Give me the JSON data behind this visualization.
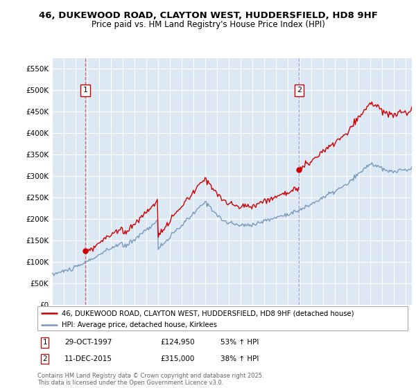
{
  "title_line1": "46, DUKEWOOD ROAD, CLAYTON WEST, HUDDERSFIELD, HD8 9HF",
  "title_line2": "Price paid vs. HM Land Registry's House Price Index (HPI)",
  "legend_label_red": "46, DUKEWOOD ROAD, CLAYTON WEST, HUDDERSFIELD, HD8 9HF (detached house)",
  "legend_label_blue": "HPI: Average price, detached house, Kirklees",
  "annotation1_label": "1",
  "annotation1_date": "29-OCT-1997",
  "annotation1_price": "£124,950",
  "annotation1_hpi": "53% ↑ HPI",
  "annotation2_label": "2",
  "annotation2_date": "11-DEC-2015",
  "annotation2_price": "£315,000",
  "annotation2_hpi": "38% ↑ HPI",
  "footer": "Contains HM Land Registry data © Crown copyright and database right 2025.\nThis data is licensed under the Open Government Licence v3.0.",
  "red_color": "#cc0000",
  "blue_color": "#7799bb",
  "dashed_color": "#cc6666",
  "dashed_color2": "#9999cc",
  "plot_bg_color": "#dde8f5",
  "grid_color": "#ffffff",
  "ylim_min": 0,
  "ylim_max": 575000,
  "purchase1_year": 1997.83,
  "purchase1_price": 124950,
  "purchase2_year": 2015.95,
  "purchase2_price": 315000
}
